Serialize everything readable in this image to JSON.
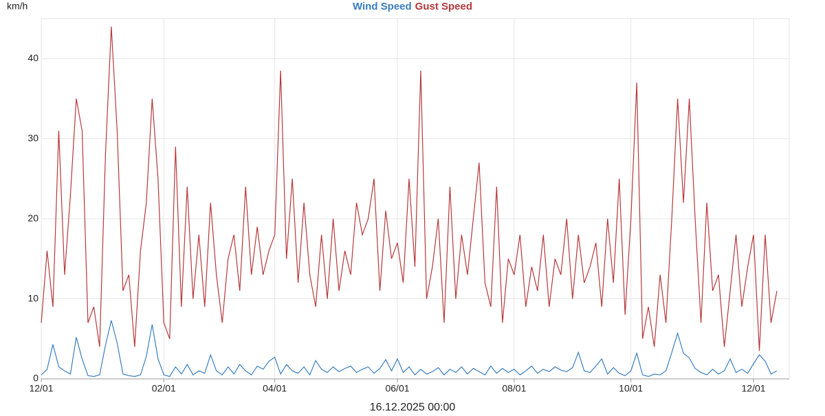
{
  "chart_data": {
    "type": "line",
    "ylabel": "km/h",
    "xlabel": "16.12.2025 00:00",
    "legend": "top",
    "grid": true,
    "ylim": [
      0,
      45
    ],
    "yticks": [
      0,
      10,
      20,
      30,
      40
    ],
    "categories": [
      "12/01",
      null,
      null,
      null,
      null,
      null,
      null,
      null,
      null,
      null,
      null,
      null,
      null,
      null,
      null,
      null,
      null,
      null,
      null,
      null,
      null,
      "02/01",
      null,
      null,
      null,
      null,
      null,
      null,
      null,
      null,
      null,
      null,
      null,
      null,
      null,
      null,
      null,
      null,
      null,
      null,
      "04/01",
      null,
      null,
      null,
      null,
      null,
      null,
      null,
      null,
      null,
      null,
      null,
      null,
      null,
      null,
      null,
      null,
      null,
      null,
      null,
      null,
      "06/01",
      null,
      null,
      null,
      null,
      null,
      null,
      null,
      null,
      null,
      null,
      null,
      null,
      null,
      null,
      null,
      null,
      null,
      null,
      null,
      "08/01",
      null,
      null,
      null,
      null,
      null,
      null,
      null,
      null,
      null,
      null,
      null,
      null,
      null,
      null,
      null,
      null,
      null,
      null,
      null,
      "10/01",
      null,
      null,
      null,
      null,
      null,
      null,
      null,
      null,
      null,
      null,
      null,
      null,
      null,
      null,
      null,
      null,
      null,
      null,
      null,
      null,
      "12/01",
      null,
      null,
      null,
      null
    ],
    "series": [
      {
        "name": "Wind Speed",
        "color": "#3a7ebf",
        "values": [
          0.5,
          1.2,
          4.3,
          1.5,
          1,
          0.6,
          5.2,
          2.5,
          0.4,
          0.3,
          0.5,
          4.2,
          7.3,
          4.5,
          0.6,
          0.4,
          0.3,
          0.5,
          2.8,
          6.8,
          2.5,
          0.5,
          0.3,
          1.5,
          0.6,
          1.8,
          0.5,
          1,
          0.7,
          3,
          1,
          0.5,
          1.5,
          0.6,
          1.8,
          1,
          0.5,
          1.6,
          1.2,
          2.2,
          2.7,
          0.6,
          1.8,
          1,
          0.7,
          1.5,
          0.5,
          2.3,
          1.2,
          0.8,
          1.5,
          0.9,
          1.3,
          1.6,
          0.8,
          1.2,
          1.5,
          0.7,
          1.3,
          2.4,
          1,
          2.5,
          0.8,
          1.5,
          0.5,
          1.2,
          0.6,
          0.9,
          1.4,
          0.5,
          1.2,
          0.8,
          1.5,
          0.6,
          1.3,
          0.9,
          0.5,
          1.6,
          0.7,
          1.3,
          0.8,
          1.2,
          0.5,
          1,
          1.6,
          0.7,
          1.2,
          0.9,
          1.5,
          1.1,
          0.9,
          1.4,
          3.3,
          1,
          0.8,
          1.6,
          2.5,
          0.6,
          1.4,
          0.7,
          0.4,
          1,
          3.2,
          0.5,
          0.3,
          0.6,
          0.5,
          1,
          3.3,
          5.7,
          3.2,
          2.6,
          1.3,
          0.8,
          0.5,
          1.2,
          0.6,
          1,
          2.5,
          0.8,
          1.2,
          0.7,
          1.9,
          3,
          2.2,
          0.6,
          1
        ]
      },
      {
        "name": "Gust Speed",
        "color": "#b5373a",
        "values": [
          7,
          16,
          9,
          31,
          13,
          23,
          35,
          31,
          7,
          9,
          4,
          28,
          44,
          31,
          11,
          13,
          4,
          16,
          22,
          35,
          25,
          7,
          5,
          29,
          9,
          24,
          10,
          18,
          9,
          22,
          13,
          7,
          15,
          18,
          11,
          24,
          13,
          19,
          13,
          16,
          18,
          38.5,
          15,
          25,
          12,
          22,
          13,
          9,
          18,
          10,
          20,
          11,
          16,
          13,
          22,
          18,
          20,
          25,
          11,
          21,
          15,
          17,
          12,
          25,
          14,
          38.5,
          10,
          14,
          20,
          7,
          24,
          10,
          18,
          13,
          20,
          27,
          12,
          9,
          24,
          7,
          15,
          13,
          18,
          9,
          14,
          11,
          18,
          9,
          15,
          13,
          20,
          10,
          18,
          12,
          14,
          17,
          9,
          20,
          12,
          25,
          8,
          20,
          37,
          5,
          9,
          4,
          13,
          7,
          20,
          35,
          22,
          35,
          20,
          7,
          22,
          11,
          13,
          4,
          11,
          18,
          9,
          14,
          18,
          3.5,
          18,
          7,
          11
        ]
      }
    ]
  }
}
